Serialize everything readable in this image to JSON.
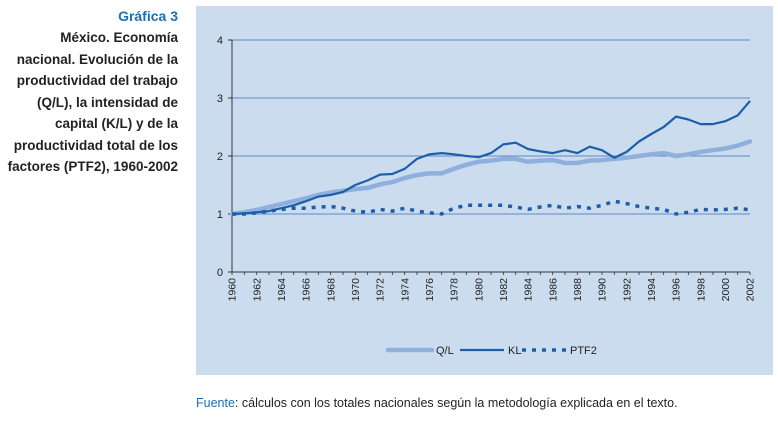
{
  "caption": {
    "number": "Gráfica 3",
    "text": "México. Economía nacional. Evolución de la productividad del trabajo (Q/L), la intensidad de capital (K/L) y de la productividad total de los factores (PTF2), 1960-2002"
  },
  "source": {
    "label": "Fuente",
    "text": ": cálculos con los totales nacionales según la metodología explicada en el texto."
  },
  "colors": {
    "ql": "#8fb0dc",
    "kl": "#1d5ea8",
    "ptf2": "#1d5ea8",
    "grid": "#3a6fb5",
    "panel": "#ccdcef"
  },
  "chart_data": {
    "type": "line",
    "title": "",
    "xlabel": "",
    "ylabel": "",
    "ylim": [
      0,
      4
    ],
    "yticks": [
      0,
      1,
      2,
      3,
      4
    ],
    "xlim": [
      1960,
      2002
    ],
    "x": [
      1960,
      1961,
      1962,
      1963,
      1964,
      1965,
      1966,
      1967,
      1968,
      1969,
      1970,
      1971,
      1972,
      1973,
      1974,
      1975,
      1976,
      1977,
      1978,
      1979,
      1980,
      1981,
      1982,
      1983,
      1984,
      1985,
      1986,
      1987,
      1988,
      1989,
      1990,
      1991,
      1992,
      1993,
      1994,
      1995,
      1996,
      1997,
      1998,
      1999,
      2000,
      2001,
      2002
    ],
    "xtick_labels": [
      "1960",
      "1962",
      "1964",
      "1966",
      "1968",
      "1970",
      "1972",
      "1974",
      "1976",
      "1978",
      "1980",
      "1982",
      "1984",
      "1986",
      "1988",
      "1990",
      "1992",
      "1994",
      "1996",
      "1998",
      "2000",
      "2002"
    ],
    "series": [
      {
        "name": "Q/L",
        "style": "thick",
        "values": [
          1.0,
          1.03,
          1.07,
          1.12,
          1.17,
          1.22,
          1.27,
          1.33,
          1.37,
          1.4,
          1.43,
          1.45,
          1.51,
          1.55,
          1.62,
          1.67,
          1.7,
          1.7,
          1.78,
          1.85,
          1.9,
          1.92,
          1.95,
          1.95,
          1.9,
          1.92,
          1.93,
          1.88,
          1.88,
          1.92,
          1.93,
          1.95,
          1.97,
          2.0,
          2.03,
          2.05,
          2.0,
          2.03,
          2.07,
          2.1,
          2.13,
          2.18,
          2.25
        ]
      },
      {
        "name": "KL",
        "style": "solid",
        "values": [
          1.0,
          1.01,
          1.03,
          1.05,
          1.1,
          1.15,
          1.22,
          1.3,
          1.33,
          1.38,
          1.5,
          1.58,
          1.68,
          1.69,
          1.78,
          1.95,
          2.03,
          2.05,
          2.03,
          2.0,
          1.98,
          2.05,
          2.2,
          2.23,
          2.12,
          2.08,
          2.05,
          2.1,
          2.05,
          2.16,
          2.1,
          1.97,
          2.07,
          2.25,
          2.38,
          2.5,
          2.68,
          2.63,
          2.55,
          2.55,
          2.6,
          2.7,
          2.95
        ]
      },
      {
        "name": "PTF2",
        "style": "dotted",
        "values": [
          1.0,
          1.0,
          1.02,
          1.05,
          1.08,
          1.1,
          1.1,
          1.12,
          1.13,
          1.1,
          1.05,
          1.03,
          1.08,
          1.05,
          1.1,
          1.05,
          1.02,
          1.0,
          1.1,
          1.15,
          1.15,
          1.15,
          1.15,
          1.12,
          1.08,
          1.12,
          1.15,
          1.1,
          1.13,
          1.1,
          1.15,
          1.22,
          1.18,
          1.13,
          1.1,
          1.08,
          1.0,
          1.03,
          1.08,
          1.07,
          1.08,
          1.1,
          1.07
        ]
      }
    ],
    "legend": {
      "position": "bottom-center",
      "entries": [
        "Q/L",
        "KL",
        "PTF2"
      ]
    }
  }
}
